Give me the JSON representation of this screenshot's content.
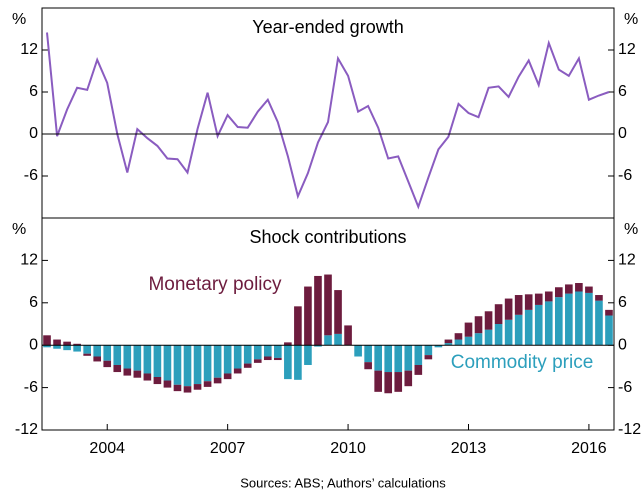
{
  "chart_data": [
    {
      "type": "line",
      "title": "Year-ended growth",
      "y_unit": "%",
      "color": "#8a5cc0",
      "ylim": [
        -12,
        18
      ],
      "yticks": [
        -6,
        0,
        6,
        12
      ],
      "values": [
        14.5,
        -0.3,
        3.5,
        6.6,
        6.3,
        10.6,
        7.3,
        0,
        -5.5,
        0.7,
        -0.6,
        -1.7,
        -3.5,
        -3.6,
        -5.5,
        0.7,
        5.9,
        -0.3,
        2.7,
        1.0,
        0.9,
        3.2,
        4.9,
        1.7,
        -3.2,
        -8.9,
        -5.6,
        -1.2,
        1.7,
        10.8,
        8.3,
        3.2,
        4.0,
        0.9,
        -3.5,
        -3.2,
        -6.8,
        -10.4,
        -6.2,
        -2.2,
        -0.4,
        4.3,
        3.0,
        2.4,
        6.6,
        6.8,
        5.3,
        8.2,
        10.5,
        7.0,
        13.0,
        9.2,
        8.3,
        10.8,
        4.9,
        5.5,
        6.0
      ]
    },
    {
      "type": "stacked_bar",
      "title": "Shock contributions",
      "y_unit": "%",
      "ylim": [
        -12,
        18
      ],
      "yticks": [
        -12,
        -6,
        0,
        6,
        12
      ],
      "categories": [
        null,
        null,
        null,
        null,
        null,
        null,
        "2004",
        null,
        null,
        null,
        null,
        null,
        null,
        null,
        null,
        null,
        null,
        null,
        "2007",
        null,
        null,
        null,
        null,
        null,
        null,
        null,
        null,
        null,
        null,
        null,
        "2010",
        null,
        null,
        null,
        null,
        null,
        null,
        null,
        null,
        null,
        null,
        null,
        "2013",
        null,
        null,
        null,
        null,
        null,
        null,
        null,
        null,
        null,
        null,
        null,
        "2016",
        null,
        null
      ],
      "series": [
        {
          "name": "Commodity price",
          "color": "#2c9fbc",
          "values": [
            -0.3,
            -0.5,
            -0.7,
            -0.9,
            -1.2,
            -1.6,
            -2.2,
            -2.8,
            -3.3,
            -3.6,
            -4.0,
            -4.5,
            -5.0,
            -5.6,
            -5.8,
            -5.5,
            -5.1,
            -4.6,
            -4.0,
            -3.3,
            -2.6,
            -2.0,
            -1.6,
            -1.8,
            -4.8,
            -4.9,
            -2.8,
            -0.2,
            1.4,
            1.6,
            0.0,
            -1.6,
            -2.4,
            -3.6,
            -3.8,
            -3.8,
            -3.6,
            -2.8,
            -1.4,
            -0.3,
            0.3,
            0.8,
            1.2,
            1.7,
            2.2,
            3.0,
            3.6,
            4.3,
            5.0,
            5.7,
            6.2,
            6.8,
            7.3,
            7.6,
            7.4,
            6.3,
            4.2
          ]
        },
        {
          "name": "Monetary policy",
          "color": "#6d1c3e",
          "values": [
            1.4,
            0.8,
            0.5,
            0.2,
            -0.3,
            -0.7,
            -0.9,
            -1.0,
            -1.0,
            -1.0,
            -1.0,
            -1.0,
            -1.0,
            -0.9,
            -0.9,
            -0.8,
            -0.8,
            -0.8,
            -0.8,
            -0.7,
            -0.6,
            -0.5,
            -0.5,
            -0.3,
            0.4,
            5.5,
            8.3,
            9.8,
            8.6,
            6.2,
            2.8,
            0,
            -1.0,
            -3.0,
            -3.0,
            -2.8,
            -2.2,
            -1.4,
            -0.6,
            0,
            0.5,
            0.9,
            2.0,
            2.4,
            2.6,
            2.8,
            3.0,
            2.8,
            2.2,
            1.6,
            1.4,
            1.4,
            1.3,
            1.2,
            0.9,
            0.8,
            0.8
          ]
        }
      ]
    }
  ],
  "source": "Sources: ABS; Authors’ calculations"
}
